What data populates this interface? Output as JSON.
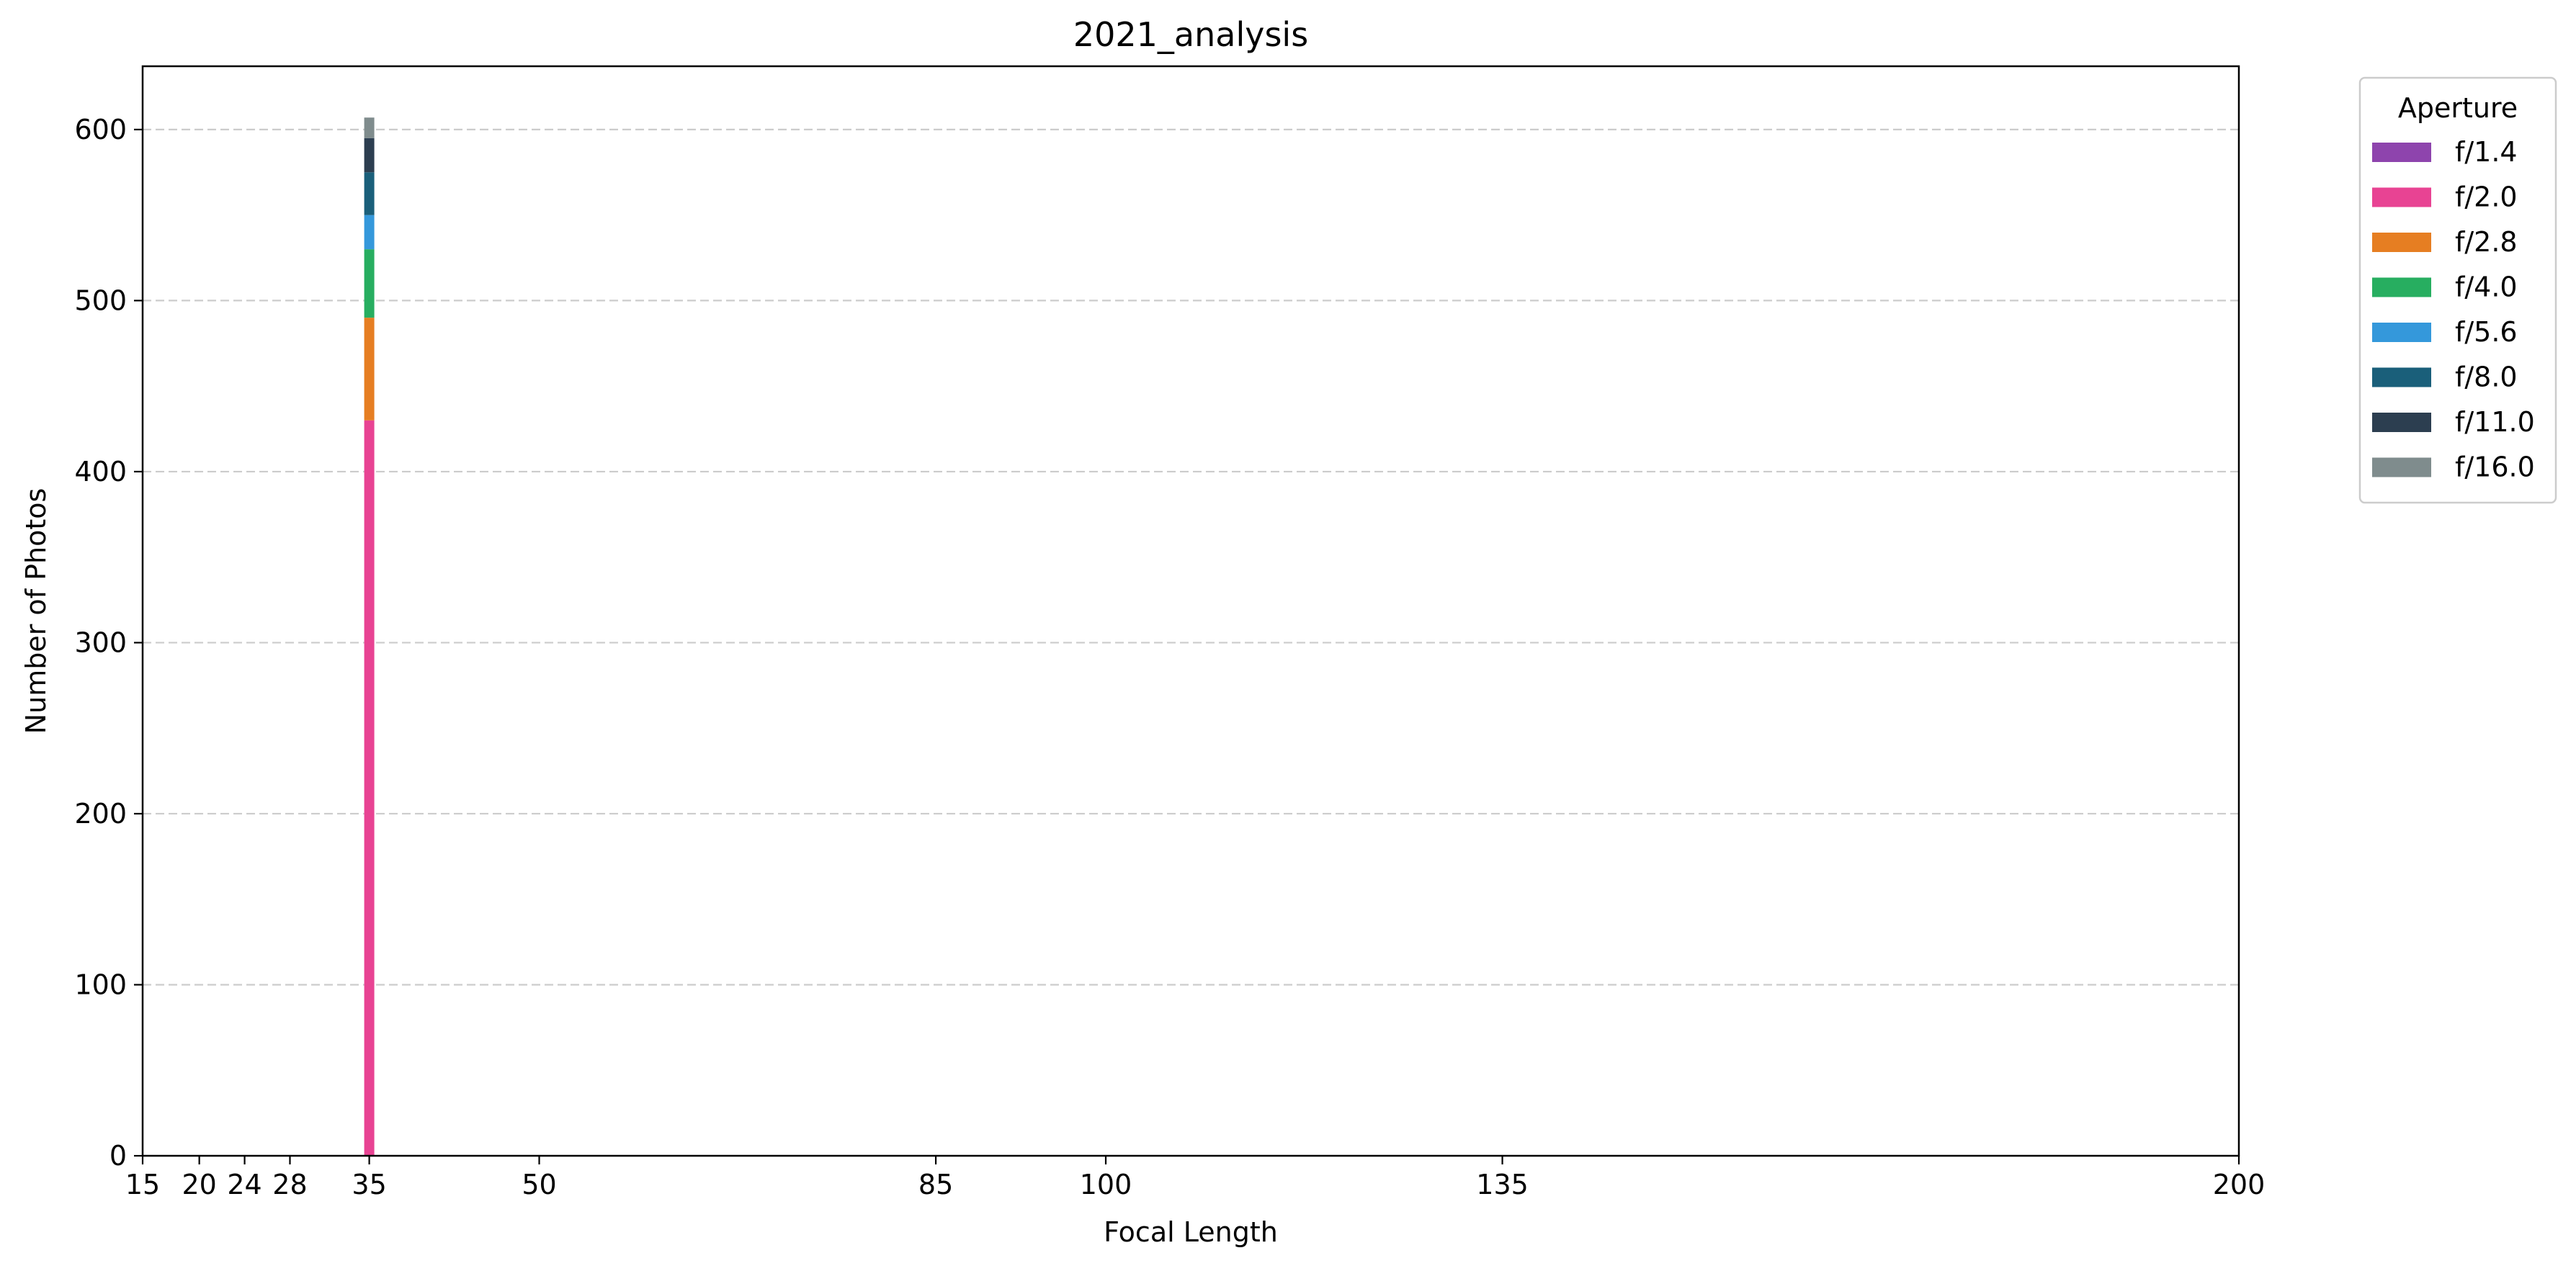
{
  "chart_data": {
    "type": "bar",
    "stacked": true,
    "title": "2021_analysis",
    "xlabel": "Focal Length",
    "ylabel": "Number of Photos",
    "xlim": [
      15,
      200
    ],
    "ylim": [
      0,
      637
    ],
    "xticks": [
      15,
      20,
      24,
      28,
      35,
      50,
      85,
      100,
      135,
      200
    ],
    "yticks": [
      0,
      100,
      200,
      300,
      400,
      500,
      600
    ],
    "grid": {
      "y": true,
      "x": false,
      "style": "dashed"
    },
    "legend": {
      "title": "Aperture",
      "placement": "outside-top-right"
    },
    "categories": [
      35
    ],
    "series": [
      {
        "name": "f/1.4",
        "color": "#8e44ad",
        "values": [
          0
        ]
      },
      {
        "name": "f/2.0",
        "color": "#e84393",
        "values": [
          430
        ]
      },
      {
        "name": "f/2.8",
        "color": "#e67e22",
        "values": [
          60
        ]
      },
      {
        "name": "f/4.0",
        "color": "#27ae60",
        "values": [
          40
        ]
      },
      {
        "name": "f/5.6",
        "color": "#3498db",
        "values": [
          20
        ]
      },
      {
        "name": "f/8.0",
        "color": "#1a5f7a",
        "values": [
          25
        ]
      },
      {
        "name": "f/11.0",
        "color": "#2c3e50",
        "values": [
          20
        ]
      },
      {
        "name": "f/16.0",
        "color": "#7f8c8d",
        "values": [
          12
        ]
      }
    ]
  }
}
